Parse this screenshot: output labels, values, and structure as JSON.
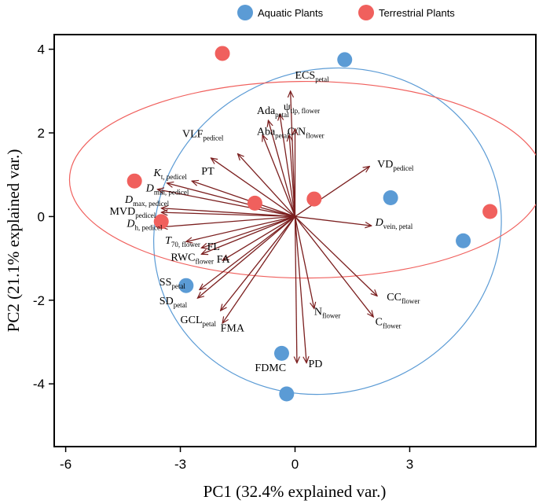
{
  "chart_data": {
    "type": "scatter",
    "xlabel": "PC1 (32.4% explained var.)",
    "ylabel": "PC2 (21.1% explained var.)",
    "xlim": [
      -6.3,
      6.3
    ],
    "ylim": [
      -5.5,
      4.35
    ],
    "xticks": [
      -6,
      -3,
      0,
      3
    ],
    "yticks": [
      4,
      2,
      0,
      -2,
      -4
    ],
    "grid": false,
    "legend_position": "top-center",
    "colors": {
      "aquatic": "#5b9bd5",
      "terrestrial": "#f0605d",
      "vector": "#7b1f1f"
    },
    "series": [
      {
        "name": "Aquatic Plants",
        "key": "aquatic",
        "points": [
          {
            "x": 1.3,
            "y": 3.75
          },
          {
            "x": 2.5,
            "y": 0.45
          },
          {
            "x": 4.4,
            "y": -0.58
          },
          {
            "x": -2.85,
            "y": -1.65
          },
          {
            "x": -0.35,
            "y": -3.27
          },
          {
            "x": -0.22,
            "y": -4.24
          }
        ],
        "ellipse": {
          "cx": 0.85,
          "cy": -0.35,
          "rx": 4.6,
          "ry": 3.85,
          "angle_deg": 22
        }
      },
      {
        "name": "Terrestrial Plants",
        "key": "terrestrial",
        "points": [
          {
            "x": -1.9,
            "y": 3.9
          },
          {
            "x": -4.2,
            "y": 0.85
          },
          {
            "x": -3.5,
            "y": -0.12
          },
          {
            "x": -1.05,
            "y": 0.32
          },
          {
            "x": 0.5,
            "y": 0.42
          },
          {
            "x": 5.1,
            "y": 0.12
          }
        ],
        "ellipse": {
          "cx": 0.3,
          "cy": 0.88,
          "rx": 6.2,
          "ry": 2.35,
          "angle_deg": 0
        }
      }
    ],
    "loadings": [
      {
        "x": -0.12,
        "y": 3.0,
        "label_x": 0.0,
        "label_y": 3.3,
        "main": "ECS",
        "sub": "petal"
      },
      {
        "x": -0.7,
        "y": 2.3,
        "label_x": -1.0,
        "label_y": 2.45,
        "main": "Ada",
        "sub": "petal"
      },
      {
        "x": -0.4,
        "y": 2.45,
        "label_x": -0.3,
        "label_y": 2.55,
        "main": "ψ",
        "sub": "tlp, flower"
      },
      {
        "x": -0.85,
        "y": 1.95,
        "label_x": -1.0,
        "label_y": 1.95,
        "main": "Aba",
        "sub": "petal"
      },
      {
        "x": -0.15,
        "y": 1.95,
        "label_x": -0.2,
        "label_y": 1.95,
        "main": "C/N",
        "sub": "flower"
      },
      {
        "x": 0.0,
        "y": 2.1,
        "label_x": 0.0,
        "label_y": 2.1,
        "main": "",
        "sub": ""
      },
      {
        "x": -2.2,
        "y": 1.4,
        "label_x": -2.95,
        "label_y": 1.9,
        "main": "VLF",
        "sub": "pedicel"
      },
      {
        "x": -1.5,
        "y": 1.5,
        "label_x": -1.5,
        "label_y": 1.5,
        "main": "",
        "sub": ""
      },
      {
        "x": 1.95,
        "y": 1.2,
        "label_x": 2.15,
        "label_y": 1.17,
        "main": "VD",
        "sub": "pedicel"
      },
      {
        "x": -2.7,
        "y": 0.85,
        "label_x": -2.45,
        "label_y": 1.0,
        "main": "PT",
        "sub": ""
      },
      {
        "x": -3.35,
        "y": 0.8,
        "label_x": -3.7,
        "label_y": 0.97,
        "main": "K",
        "sub": "t, pedicel"
      },
      {
        "x": -3.6,
        "y": 0.65,
        "label_x": -3.9,
        "label_y": 0.6,
        "main": "D",
        "sub": "min, pedicel"
      },
      {
        "x": -3.5,
        "y": 0.2,
        "label_x": -4.45,
        "label_y": 0.33,
        "main": "D",
        "sub": "max, pedicel"
      },
      {
        "x": -3.5,
        "y": 0.1,
        "label_x": -4.85,
        "label_y": 0.05,
        "main": "MVD",
        "sub": "pedicel"
      },
      {
        "x": -3.5,
        "y": -0.25,
        "label_x": -4.4,
        "label_y": -0.25,
        "main": "D",
        "sub": "h, pedicel"
      },
      {
        "x": 2.0,
        "y": -0.22,
        "label_x": 2.1,
        "label_y": -0.22,
        "main": "D",
        "sub": "vein, petal"
      },
      {
        "x": -2.85,
        "y": -0.6,
        "label_x": -3.4,
        "label_y": -0.65,
        "main": "T",
        "sub": "70, flower"
      },
      {
        "x": -2.45,
        "y": -0.75,
        "label_x": -2.3,
        "label_y": -0.8,
        "main": "FL",
        "sub": ""
      },
      {
        "x": -2.45,
        "y": -0.9,
        "label_x": -3.25,
        "label_y": -1.05,
        "main": "RWC",
        "sub": "flower"
      },
      {
        "x": -1.9,
        "y": -1.05,
        "label_x": -2.05,
        "label_y": -1.1,
        "main": "FA",
        "sub": ""
      },
      {
        "x": -2.5,
        "y": -1.75,
        "label_x": -3.55,
        "label_y": -1.65,
        "main": "SS",
        "sub": "petal"
      },
      {
        "x": -2.55,
        "y": -1.95,
        "label_x": -3.55,
        "label_y": -2.1,
        "main": "SD",
        "sub": "petal"
      },
      {
        "x": -1.95,
        "y": -2.25,
        "label_x": -3.0,
        "label_y": -2.55,
        "main": "GCL",
        "sub": "petal"
      },
      {
        "x": -1.9,
        "y": -2.55,
        "label_x": -1.95,
        "label_y": -2.75,
        "main": "FMA",
        "sub": ""
      },
      {
        "x": 0.05,
        "y": -3.5,
        "label_x": -1.05,
        "label_y": -3.7,
        "main": "FDMC",
        "sub": ""
      },
      {
        "x": 0.3,
        "y": -3.5,
        "label_x": 0.35,
        "label_y": -3.6,
        "main": "PD",
        "sub": ""
      },
      {
        "x": 0.5,
        "y": -2.2,
        "label_x": 0.5,
        "label_y": -2.35,
        "main": "N",
        "sub": "flower"
      },
      {
        "x": 2.15,
        "y": -1.9,
        "label_x": 2.4,
        "label_y": -2.0,
        "main": "CC",
        "sub": "flower"
      },
      {
        "x": 2.05,
        "y": -2.4,
        "label_x": 2.1,
        "label_y": -2.6,
        "main": "C",
        "sub": "flower"
      }
    ]
  }
}
